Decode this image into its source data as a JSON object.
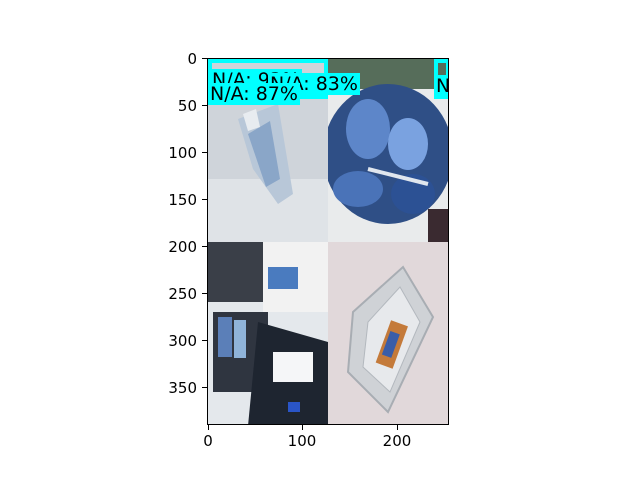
{
  "axes": {
    "y_ticks": [
      "0",
      "50",
      "100",
      "150",
      "200",
      "250",
      "300",
      "350"
    ],
    "x_ticks": [
      "0",
      "100",
      "200"
    ]
  },
  "detections": {
    "label_1": "N/A: 87%",
    "label_2": "N/A: 83%",
    "label_3": "N/A: 93%",
    "label_4": "N"
  },
  "colors": {
    "box_color": "#00ffff"
  }
}
